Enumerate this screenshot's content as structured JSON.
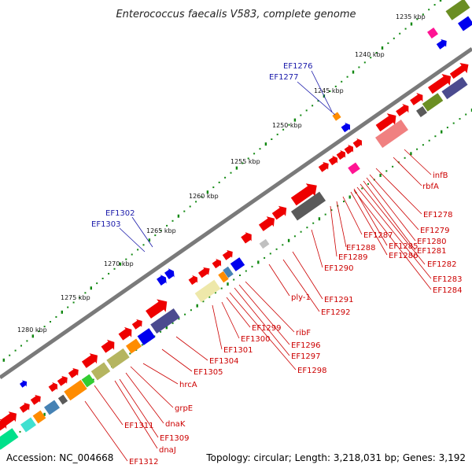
{
  "title": "Enterococcus faecalis V583, complete genome",
  "footer": {
    "accession": "Accession: NC_004668",
    "summary": "Topology: circular; Length: 3,218,031 bp; Genes: 3,192"
  },
  "kbp_labels": [
    "1235 kbp",
    "1240 kbp",
    "1245 kbp",
    "1250 kbp",
    "1255 kbp",
    "1260 kbp",
    "1265 kbp",
    "1270 kbp",
    "1275 kbp",
    "1280 kbp"
  ],
  "gene_labels_red": [
    "infB",
    "rbfA",
    "EF1278",
    "EF1279",
    "EF1280",
    "EF1281",
    "EF1282",
    "EF1283",
    "EF1284",
    "EF1285",
    "EF1286",
    "EF1287",
    "EF1288",
    "EF1289",
    "EF1290",
    "ply-1",
    "EF1291",
    "EF1292",
    "ribF",
    "EF1296",
    "EF1297",
    "EF1298",
    "EF1299",
    "EF1300",
    "EF1301",
    "EF1304",
    "EF1305",
    "hrcA",
    "grpE",
    "dnaK",
    "dnaJ",
    "EF1309",
    "EF1311",
    "EF1312"
  ],
  "gene_labels_blue": [
    "EF1276",
    "EF1277",
    "EF1302",
    "EF1303"
  ],
  "colors": {
    "backbone": "#7a7a7a",
    "gene_forward": "#ee0000",
    "gene_reverse_small": "#0000ee",
    "tick": "#118811",
    "label_red": "#cc0000",
    "label_blue": "#1a1aaa",
    "cog_olive": "#6b8e23",
    "cog_blue": "#0000ee",
    "cog_navy": "#4b4b8f",
    "cog_magenta": "#ff1493",
    "cog_grey": "#5a5a5a",
    "cog_salmon": "#f08080",
    "cog_khaki": "#e0dc80",
    "cog_orange": "#ff8c00",
    "cog_teal": "#40e0d0",
    "cog_steel": "#4682b4",
    "cog_green": "#32cd32",
    "cog_lightgrey": "#c0c0c0"
  }
}
